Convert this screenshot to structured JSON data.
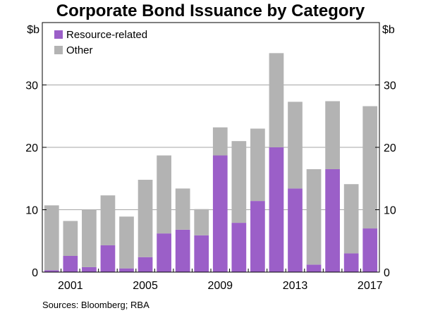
{
  "chart_data": {
    "type": "bar",
    "stacked": true,
    "title": "Corporate Bond Issuance by Category",
    "y_unit_left": "$b",
    "y_unit_right": "$b",
    "ylim": [
      0,
      40
    ],
    "yticks": [
      0,
      10,
      20,
      30
    ],
    "grid": true,
    "legend_position": "top-left",
    "categories": [
      2000,
      2001,
      2002,
      2003,
      2004,
      2005,
      2006,
      2007,
      2008,
      2009,
      2010,
      2011,
      2012,
      2013,
      2014,
      2015,
      2016,
      2017
    ],
    "x_tick_labels": [
      "2001",
      "2005",
      "2009",
      "2013",
      "2017"
    ],
    "x_tick_years": [
      2001,
      2005,
      2009,
      2013,
      2017
    ],
    "series": [
      {
        "name": "Resource-related",
        "color": "#9b5fc8",
        "values": [
          0.3,
          2.6,
          0.8,
          4.3,
          0.6,
          2.4,
          6.2,
          6.8,
          5.9,
          18.7,
          7.9,
          11.4,
          20.0,
          13.4,
          1.2,
          16.5,
          3.0,
          7.0
        ]
      },
      {
        "name": "Other",
        "color": "#b3b3b3",
        "values": [
          10.4,
          5.6,
          9.2,
          8.0,
          8.3,
          12.4,
          12.5,
          6.6,
          4.2,
          4.5,
          13.1,
          11.6,
          15.1,
          13.9,
          15.3,
          10.9,
          11.1,
          19.6
        ]
      }
    ],
    "source": "Sources:   Bloomberg; RBA"
  }
}
